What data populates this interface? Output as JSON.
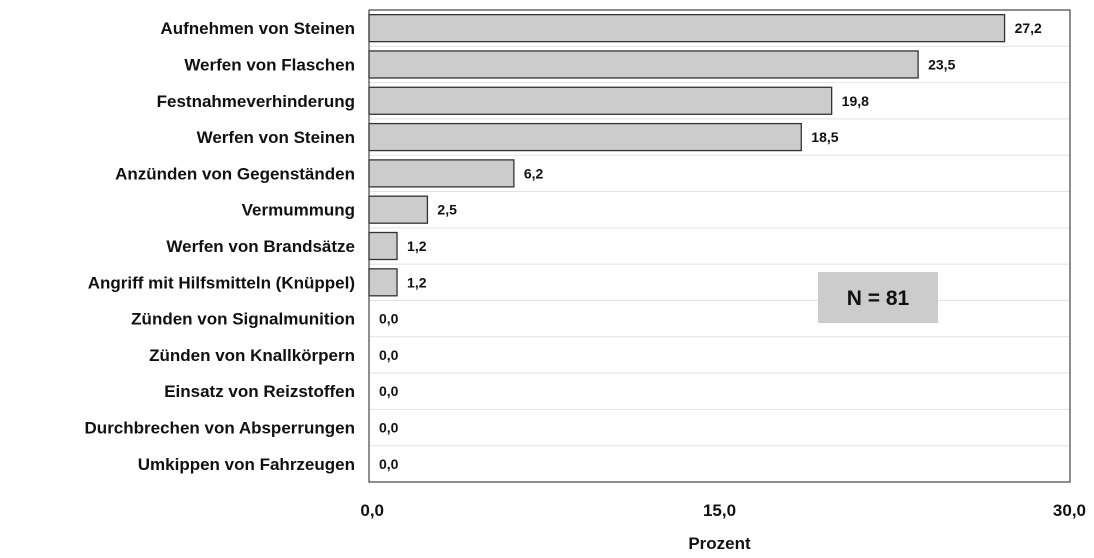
{
  "chart_data": {
    "type": "bar",
    "orientation": "horizontal",
    "categories": [
      "Aufnehmen von Steinen",
      "Werfen von Flaschen",
      "Festnahmeverhinderung",
      "Werfen von Steinen",
      "Anzünden von Gegenständen",
      "Vermummung",
      "Werfen von Brandsätze",
      "Angriff mit Hilfsmitteln (Knüppel)",
      "Zünden von Signalmunition",
      "Zünden von Knallkörpern",
      "Einsatz von Reizstoffen",
      "Durchbrechen von Absperrungen",
      "Umkippen von Fahrzeugen"
    ],
    "values": [
      27.2,
      23.5,
      19.8,
      18.5,
      6.2,
      2.5,
      1.2,
      1.2,
      0.0,
      0.0,
      0.0,
      0.0,
      0.0
    ],
    "value_labels": [
      "27,2",
      "23,5",
      "19,8",
      "18,5",
      "6,2",
      "2,5",
      "1,2",
      "1,2",
      "0,0",
      "0,0",
      "0,0",
      "0,0",
      "0,0"
    ],
    "xlim": [
      0,
      30
    ],
    "xticks": [
      0,
      15,
      30
    ],
    "xtick_labels": [
      "0,0",
      "15,0",
      "30,0"
    ],
    "xlabel": "Prozent",
    "annotation": "N = 81",
    "grid": "horizontal category separators",
    "colors": {
      "bar_fill": "#cccccc",
      "bar_stroke": "#333333",
      "annotation_box": "#cccccc",
      "grid": "#e2e2e2",
      "frame": "#444444"
    }
  }
}
